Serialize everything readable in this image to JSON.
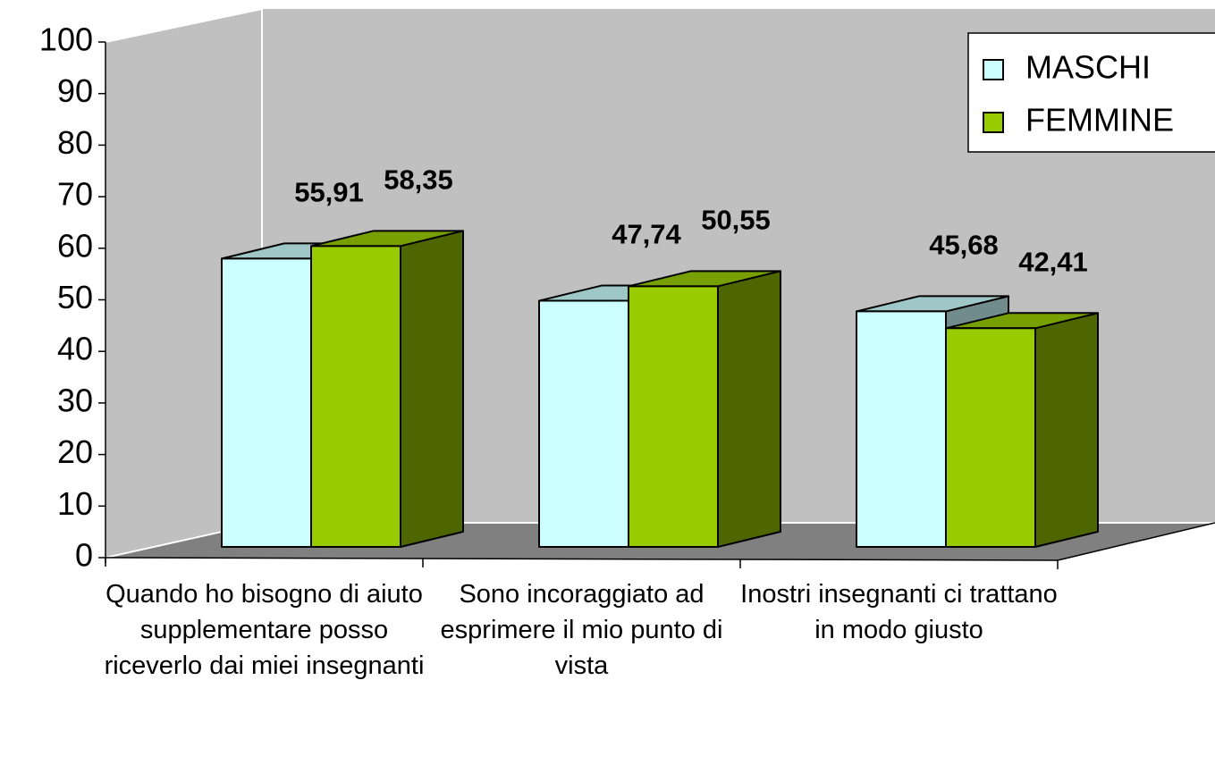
{
  "chart_data": {
    "type": "bar3d",
    "categories": [
      "Quando ho bisogno di aiuto supplementare posso riceverlo dai  miei insegnanti",
      "Sono incoraggiato ad esprimere il mio punto di vista",
      "Inostri insegnanti ci trattano in modo giusto"
    ],
    "series": [
      {
        "name": "MASCHI",
        "color": "#ccffff",
        "values": [
          55.91,
          47.74,
          45.68
        ],
        "value_labels": [
          "55,91",
          "47,74",
          "45,68"
        ]
      },
      {
        "name": "FEMMINE",
        "color": "#99cc00",
        "values": [
          58.35,
          50.55,
          42.41
        ],
        "value_labels": [
          "58,35",
          "50,55",
          "42,41"
        ]
      }
    ],
    "ylim": [
      0,
      100
    ],
    "yticks": [
      0,
      10,
      20,
      30,
      40,
      50,
      60,
      70,
      80,
      90,
      100
    ],
    "legend": "top-right"
  }
}
